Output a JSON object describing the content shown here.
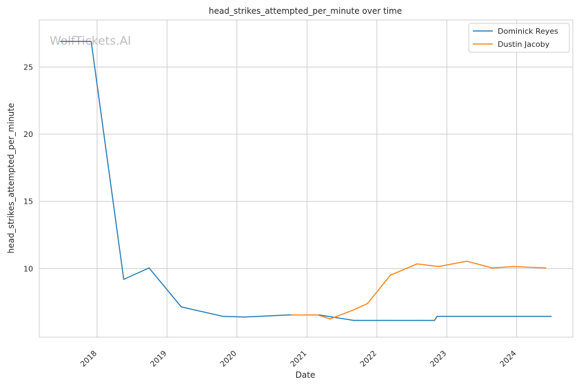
{
  "chart_data": {
    "type": "line",
    "title": "head_strikes_attempted_per_minute over time",
    "xlabel": "Date",
    "ylabel": "head_strikes_attempted_per_minute",
    "watermark": "WolfTickets.AI",
    "x_ticks": [
      "2018",
      "2019",
      "2020",
      "2021",
      "2022",
      "2023",
      "2024"
    ],
    "y_ticks": [
      10,
      15,
      20,
      25
    ],
    "xlim": [
      "2017-03-05",
      "2024-10-20"
    ],
    "ylim": [
      4.9,
      28.5
    ],
    "grid": true,
    "legend_position": "top-right",
    "series": [
      {
        "name": "Dominick Reyes",
        "color": "#1f77b4",
        "points": [
          [
            "2017-06-24",
            26.9
          ],
          [
            "2017-12-01",
            26.9
          ],
          [
            "2018-05-20",
            9.2
          ],
          [
            "2018-09-29",
            10.05
          ],
          [
            "2019-03-16",
            7.15
          ],
          [
            "2019-10-18",
            6.45
          ],
          [
            "2020-02-08",
            6.4
          ],
          [
            "2020-09-26",
            6.55
          ],
          [
            "2021-03-06",
            6.55
          ],
          [
            "2021-09-01",
            6.15
          ],
          [
            "2022-03-01",
            6.15
          ],
          [
            "2022-09-01",
            6.15
          ],
          [
            "2022-10-29",
            6.15
          ],
          [
            "2022-11-12",
            6.45
          ],
          [
            "2024-06-29",
            6.45
          ]
        ]
      },
      {
        "name": "Dustin Jacoby",
        "color": "#ff7f0e",
        "points": [
          [
            "2020-10-10",
            6.55
          ],
          [
            "2021-02-27",
            6.55
          ],
          [
            "2021-05-01",
            6.25
          ],
          [
            "2021-08-28",
            6.9
          ],
          [
            "2021-11-13",
            7.4
          ],
          [
            "2022-03-12",
            9.5
          ],
          [
            "2022-07-30",
            10.35
          ],
          [
            "2022-11-19",
            10.15
          ],
          [
            "2023-04-15",
            10.55
          ],
          [
            "2023-08-26",
            10.05
          ],
          [
            "2023-12-16",
            10.15
          ],
          [
            "2024-06-01",
            10.05
          ]
        ]
      }
    ]
  }
}
